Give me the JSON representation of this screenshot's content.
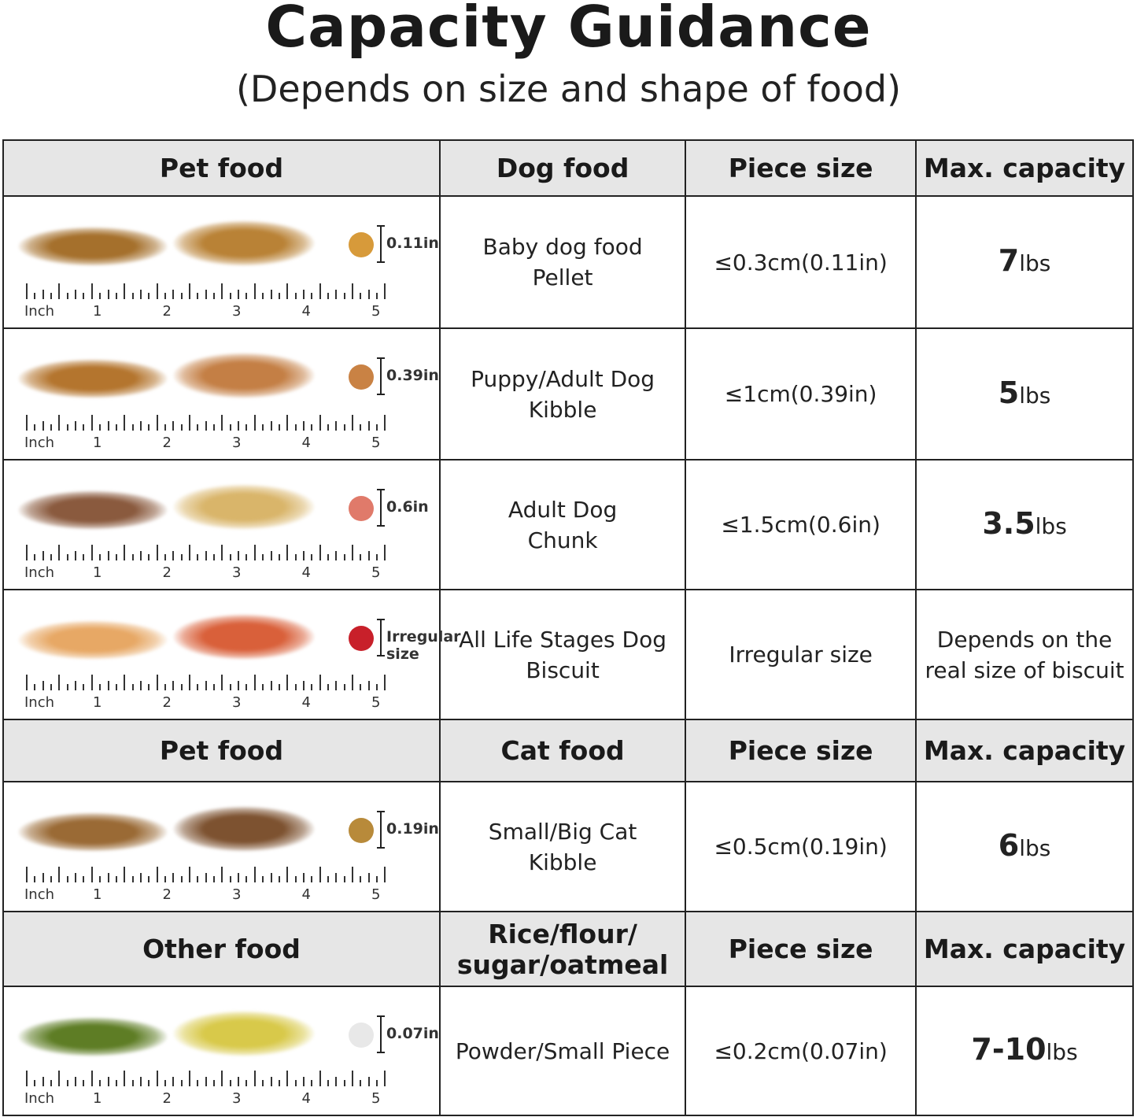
{
  "title": "Capacity Guidance",
  "subtitle": "(Depends on size and shape of food)",
  "ruler": {
    "unit": "Inch",
    "labels": [
      "1",
      "2",
      "3",
      "4",
      "5"
    ]
  },
  "sections": [
    {
      "header": [
        "Pet food",
        "Dog food",
        "Piece size",
        "Max. capacity"
      ],
      "rows": [
        {
          "size_label": "0.11in",
          "food": [
            "Baby dog food",
            "Pellet"
          ],
          "piece": "≤0.3cm(0.11in)",
          "cap_num": "7",
          "cap_unit": "lbs",
          "colors": [
            "#a5702c",
            "#b98236",
            "#d79a3a"
          ]
        },
        {
          "size_label": "0.39in",
          "food": [
            "Puppy/Adult Dog",
            "Kibble"
          ],
          "piece": "≤1cm(0.39in)",
          "cap_num": "5",
          "cap_unit": "lbs",
          "colors": [
            "#b4752e",
            "#c47f45",
            "#c98244"
          ]
        },
        {
          "size_label": "0.6in",
          "food": [
            "Adult Dog",
            "Chunk"
          ],
          "piece": "≤1.5cm(0.6in)",
          "cap_num": "3.5",
          "cap_unit": "lbs",
          "colors": [
            "#8a5a3e",
            "#d9b56a",
            "#e07a6a"
          ]
        },
        {
          "size_label": "Irregular size",
          "food": [
            "All Life Stages Dog",
            "Biscuit"
          ],
          "piece": "Irregular size",
          "cap_text": [
            "Depends on the",
            "real size of biscuit"
          ],
          "colors": [
            "#e7a865",
            "#d9603a",
            "#c8202a"
          ]
        }
      ]
    },
    {
      "header": [
        "Pet food",
        "Cat food",
        "Piece size",
        "Max. capacity"
      ],
      "rows": [
        {
          "size_label": "0.19in",
          "food": [
            "Small/Big Cat",
            "Kibble"
          ],
          "piece": "≤0.5cm(0.19in)",
          "cap_num": "6",
          "cap_unit": "lbs",
          "colors": [
            "#9a6a35",
            "#7d5230",
            "#b88a3a"
          ]
        }
      ]
    },
    {
      "header": [
        "Other food",
        "Rice/flour/ sugar/oatmeal",
        "Piece size",
        "Max. capacity"
      ],
      "rows": [
        {
          "size_label": "0.07in",
          "food": [
            "Powder/Small Piece"
          ],
          "piece": "≤0.2cm(0.07in)",
          "cap_num": "7-10",
          "cap_unit": "lbs",
          "colors": [
            "#5e7d25",
            "#d8c94a",
            "#e8e8e8"
          ]
        }
      ]
    }
  ]
}
